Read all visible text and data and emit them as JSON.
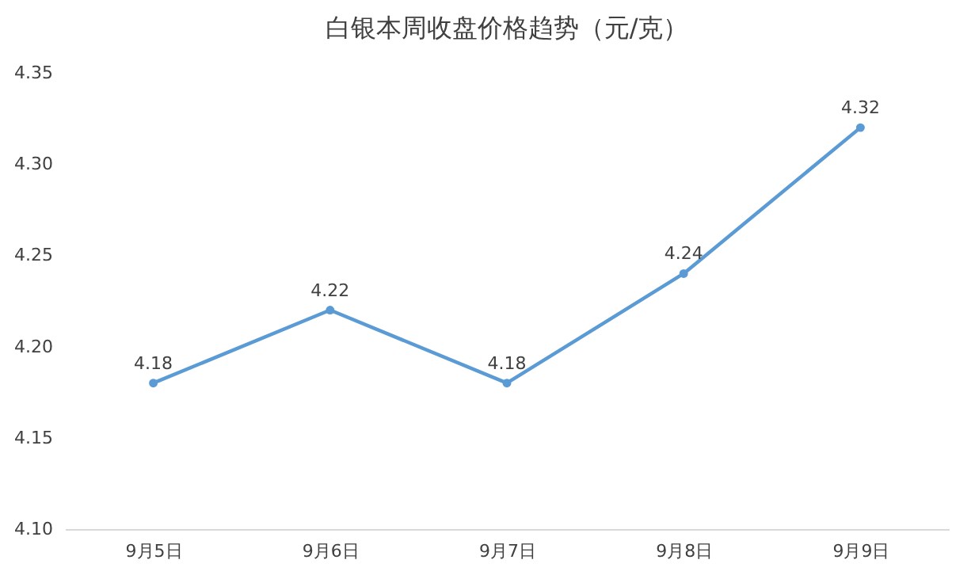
{
  "chart_data": {
    "type": "line",
    "title": "白银本周收盘价格趋势（元/克）",
    "categories": [
      "9月5日",
      "9月6日",
      "9月7日",
      "9月8日",
      "9月9日"
    ],
    "series": [
      {
        "color": "#5b9bd5",
        "values": [
          4.18,
          4.22,
          4.18,
          4.24,
          4.32
        ]
      }
    ],
    "ylim": [
      4.1,
      4.35
    ],
    "yticks": [
      {
        "value": 4.1,
        "label": "4.10"
      },
      {
        "value": 4.15,
        "label": "4.15"
      },
      {
        "value": 4.2,
        "label": "4.20"
      },
      {
        "value": 4.25,
        "label": "4.25"
      },
      {
        "value": 4.3,
        "label": "4.30"
      },
      {
        "value": 4.35,
        "label": "4.35"
      }
    ],
    "data_labels": true,
    "marker": "circle",
    "line_style": "solid",
    "grid": false
  }
}
